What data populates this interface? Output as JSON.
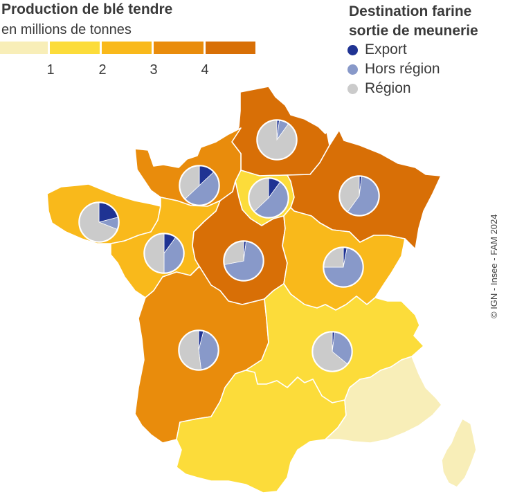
{
  "legend": {
    "title": "Production de blé tendre",
    "subtitle": "en millions de tonnes",
    "scale_colors": [
      "#f8eeb8",
      "#fcdc3a",
      "#f9b91b",
      "#e98c0c",
      "#d86f06"
    ],
    "ticks": [
      "1",
      "2",
      "3",
      "4"
    ]
  },
  "destination": {
    "title_line1": "Destination farine",
    "title_line2": "sortie de meunerie",
    "items": [
      {
        "label": "Export",
        "color": "#1f3393"
      },
      {
        "label": "Hors région",
        "color": "#8899c9"
      },
      {
        "label": "Région",
        "color": "#cbcbcb"
      }
    ]
  },
  "credit": "© IGN - Insee - FAM 2024",
  "regions": [
    {
      "name": "Hauts-de-France",
      "class": 5
    },
    {
      "name": "Normandie",
      "class": 4
    },
    {
      "name": "Île-de-France",
      "class": 2
    },
    {
      "name": "Grand Est",
      "class": 5
    },
    {
      "name": "Bretagne",
      "class": 3
    },
    {
      "name": "Pays de la Loire",
      "class": 3
    },
    {
      "name": "Centre-Val de Loire",
      "class": 5
    },
    {
      "name": "Bourgogne-Franche-Comté",
      "class": 3
    },
    {
      "name": "Nouvelle-Aquitaine",
      "class": 4
    },
    {
      "name": "Auvergne-Rhône-Alpes",
      "class": 2
    },
    {
      "name": "Occitanie",
      "class": 2
    },
    {
      "name": "Provence-Alpes-Côte d'Azur",
      "class": 1
    },
    {
      "name": "Corse",
      "class": 1
    }
  ],
  "pies": [
    {
      "region": "Hauts-de-France",
      "export": 0.02,
      "hors_region": 0.08,
      "region_share": 0.9
    },
    {
      "region": "Normandie",
      "export": 0.13,
      "hors_region": 0.5,
      "region_share": 0.37
    },
    {
      "region": "Île-de-France",
      "export": 0.1,
      "hors_region": 0.53,
      "region_share": 0.37
    },
    {
      "region": "Grand Est",
      "export": 0.02,
      "hors_region": 0.58,
      "region_share": 0.4
    },
    {
      "region": "Bretagne",
      "export": 0.21,
      "hors_region": 0.1,
      "region_share": 0.69
    },
    {
      "region": "Pays de la Loire",
      "export": 0.1,
      "hors_region": 0.4,
      "region_share": 0.5
    },
    {
      "region": "Centre-Val de Loire",
      "export": 0.02,
      "hors_region": 0.7,
      "region_share": 0.28
    },
    {
      "region": "Bourgogne-Franche-Comté",
      "export": 0.03,
      "hors_region": 0.72,
      "region_share": 0.25
    },
    {
      "region": "Nouvelle-Aquitaine",
      "export": 0.04,
      "hors_region": 0.44,
      "region_share": 0.52
    },
    {
      "region": "Auvergne-Rhône-Alpes",
      "export": 0.02,
      "hors_region": 0.34,
      "region_share": 0.64
    }
  ]
}
